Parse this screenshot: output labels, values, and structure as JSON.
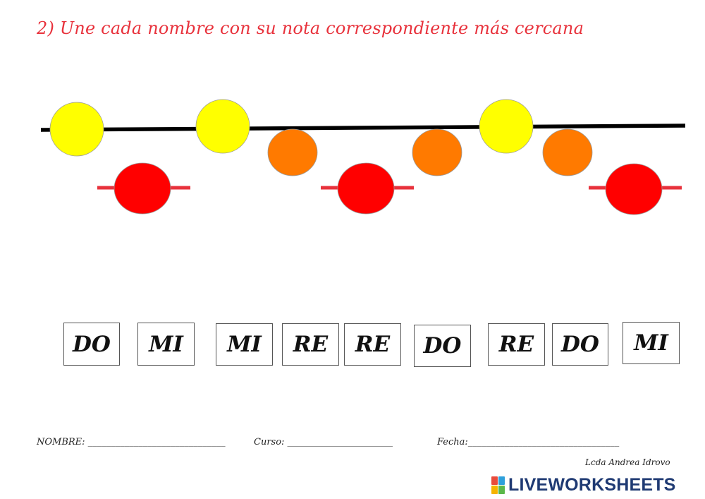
{
  "instruction": "2) Une cada nombre con su nota correspondiente más cercana",
  "colors": {
    "title": "#e8323c",
    "staff_line": "#000000",
    "ledger_line": "#e8323c",
    "note_mi": "#ffff00",
    "note_re": "#ff7a00",
    "note_do": "#ff0000",
    "brand": "#1f3a73"
  },
  "notes_sequence": [
    "MI",
    "DO",
    "MI",
    "RE",
    "DO",
    "RE",
    "MI",
    "RE",
    "DO"
  ],
  "answer_boxes": [
    "DO",
    "MI",
    "MI",
    "RE",
    "RE",
    "DO",
    "RE",
    "DO",
    "MI"
  ],
  "footer": {
    "name_label": "NOMBRE: ______________________________",
    "course_label": "Curso: _______________________",
    "date_label": "Fecha:_________________________________"
  },
  "author": "Lcda Andrea Idrovo",
  "brand": {
    "name": "LIVEWORKSHEETS",
    "icon": "liveworksheets-logo-icon",
    "icon_colors": [
      "#e84b3c",
      "#2ea0db",
      "#f5b400",
      "#5bb84a"
    ]
  }
}
